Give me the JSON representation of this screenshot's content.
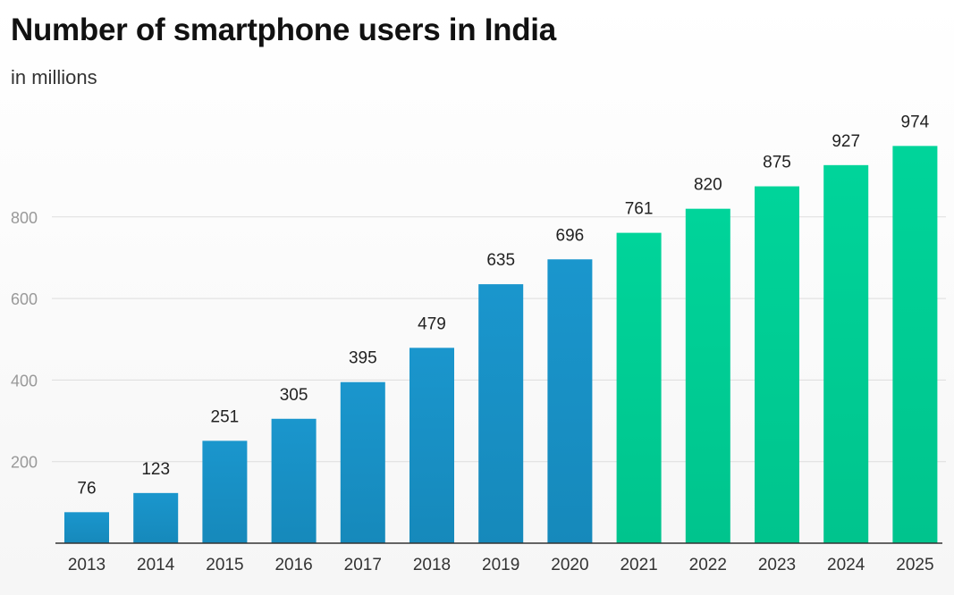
{
  "chart_data": {
    "type": "bar",
    "title": "Number of smartphone users in India",
    "subtitle": "in millions",
    "categories": [
      "2013",
      "2014",
      "2015",
      "2016",
      "2017",
      "2018",
      "2019",
      "2020",
      "2021",
      "2022",
      "2023",
      "2024",
      "2025"
    ],
    "values": [
      76,
      123,
      251,
      305,
      395,
      479,
      635,
      696,
      761,
      820,
      875,
      927,
      974
    ],
    "data_labels": [
      "76",
      "123",
      "251",
      "305",
      "395",
      "479",
      "635",
      "696",
      "761",
      "820",
      "875",
      "927",
      "974"
    ],
    "yticks": [
      200,
      400,
      600,
      800
    ],
    "ylim": [
      0,
      1000
    ],
    "grid": true,
    "legend": "none",
    "colors": {
      "historical": "#1a96cd",
      "historical_bottom": "#1689bb",
      "forecast": "#00d49a",
      "forecast_bottom": "#00c48d"
    },
    "forecast_from": "2021"
  }
}
